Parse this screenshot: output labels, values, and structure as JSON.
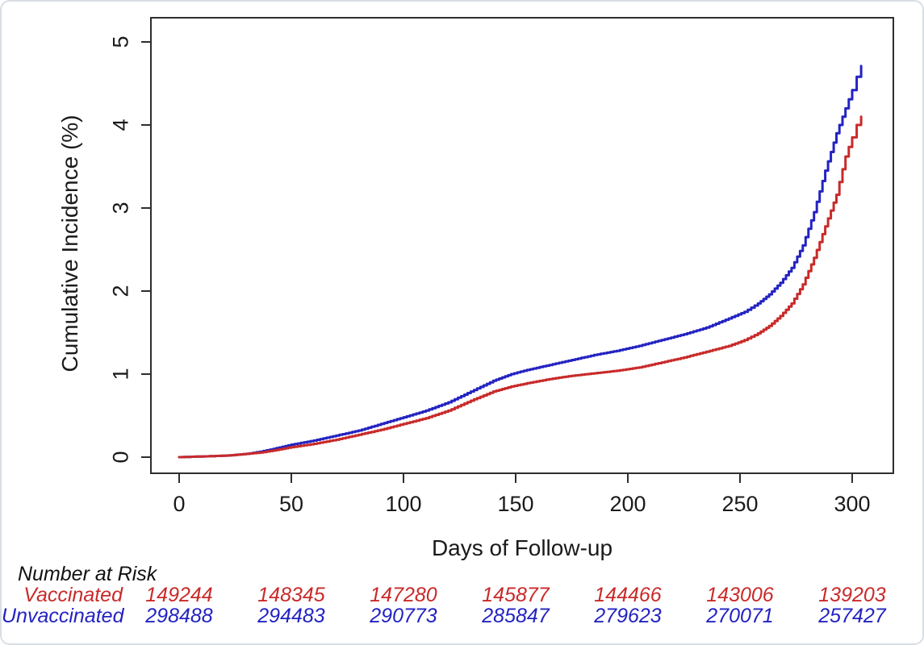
{
  "figure": {
    "background": "#ffffff",
    "border_color": "#d9dee3"
  },
  "chart_data": {
    "type": "line",
    "subtype": "step-survival-curve",
    "title": "",
    "xlabel": "Days of Follow-up",
    "ylabel": "Cumulative Incidence (%)",
    "xlim": [
      0,
      305
    ],
    "ylim": [
      0,
      5
    ],
    "xticks": [
      "0",
      "50",
      "100",
      "150",
      "200",
      "250",
      "300"
    ],
    "xtick_days": [
      0,
      50,
      100,
      150,
      200,
      250,
      300
    ],
    "yticks": [
      "0",
      "1",
      "2",
      "3",
      "4",
      "5"
    ],
    "ytick_values": [
      0,
      1,
      2,
      3,
      4,
      5
    ],
    "grid": false,
    "legend_position": "none",
    "axis_color": "#2e2e2e",
    "text_color": "#1a1a1a",
    "series": [
      {
        "name": "Unvaccinated",
        "color": "#2323C2",
        "points_day_pct": [
          [
            0,
            0.0
          ],
          [
            12,
            0.01
          ],
          [
            22,
            0.02
          ],
          [
            30,
            0.04
          ],
          [
            36,
            0.065
          ],
          [
            42,
            0.1
          ],
          [
            50,
            0.15
          ],
          [
            60,
            0.2
          ],
          [
            70,
            0.26
          ],
          [
            80,
            0.32
          ],
          [
            90,
            0.4
          ],
          [
            100,
            0.48
          ],
          [
            110,
            0.56
          ],
          [
            120,
            0.66
          ],
          [
            130,
            0.79
          ],
          [
            140,
            0.92
          ],
          [
            148,
            1.0
          ],
          [
            155,
            1.05
          ],
          [
            165,
            1.11
          ],
          [
            175,
            1.17
          ],
          [
            185,
            1.23
          ],
          [
            195,
            1.28
          ],
          [
            205,
            1.34
          ],
          [
            215,
            1.41
          ],
          [
            225,
            1.48
          ],
          [
            235,
            1.56
          ],
          [
            245,
            1.67
          ],
          [
            252,
            1.75
          ],
          [
            258,
            1.85
          ],
          [
            263,
            1.96
          ],
          [
            268,
            2.1
          ],
          [
            273,
            2.28
          ],
          [
            278,
            2.55
          ],
          [
            283,
            2.95
          ],
          [
            288,
            3.45
          ],
          [
            293,
            3.9
          ],
          [
            297,
            4.2
          ],
          [
            300,
            4.42
          ],
          [
            302,
            4.58
          ],
          [
            304,
            4.71
          ]
        ]
      },
      {
        "name": "Vaccinated",
        "color": "#C92A2A",
        "points_day_pct": [
          [
            0,
            0.0
          ],
          [
            12,
            0.01
          ],
          [
            22,
            0.02
          ],
          [
            30,
            0.04
          ],
          [
            36,
            0.055
          ],
          [
            42,
            0.08
          ],
          [
            50,
            0.12
          ],
          [
            60,
            0.16
          ],
          [
            70,
            0.21
          ],
          [
            80,
            0.27
          ],
          [
            90,
            0.33
          ],
          [
            100,
            0.4
          ],
          [
            110,
            0.47
          ],
          [
            120,
            0.56
          ],
          [
            130,
            0.68
          ],
          [
            140,
            0.79
          ],
          [
            148,
            0.85
          ],
          [
            155,
            0.89
          ],
          [
            165,
            0.94
          ],
          [
            175,
            0.98
          ],
          [
            185,
            1.01
          ],
          [
            195,
            1.04
          ],
          [
            205,
            1.08
          ],
          [
            215,
            1.14
          ],
          [
            225,
            1.2
          ],
          [
            235,
            1.27
          ],
          [
            245,
            1.34
          ],
          [
            252,
            1.41
          ],
          [
            258,
            1.49
          ],
          [
            263,
            1.58
          ],
          [
            268,
            1.7
          ],
          [
            273,
            1.85
          ],
          [
            278,
            2.08
          ],
          [
            283,
            2.4
          ],
          [
            288,
            2.78
          ],
          [
            293,
            3.16
          ],
          [
            297,
            3.62
          ],
          [
            300,
            3.85
          ],
          [
            302,
            4.0
          ],
          [
            304,
            4.1
          ]
        ]
      }
    ]
  },
  "risk_table": {
    "title": "Number at Risk",
    "days": [
      0,
      50,
      100,
      150,
      200,
      250,
      300
    ],
    "rows": [
      {
        "label": "Vaccinated",
        "color": "#C92A2A",
        "values": [
          "149244",
          "148345",
          "147280",
          "145877",
          "144466",
          "143006",
          "139203"
        ]
      },
      {
        "label": "Unvaccinated",
        "color": "#2323C2",
        "values": [
          "298488",
          "294483",
          "290773",
          "285847",
          "279623",
          "270071",
          "257427"
        ]
      }
    ]
  }
}
